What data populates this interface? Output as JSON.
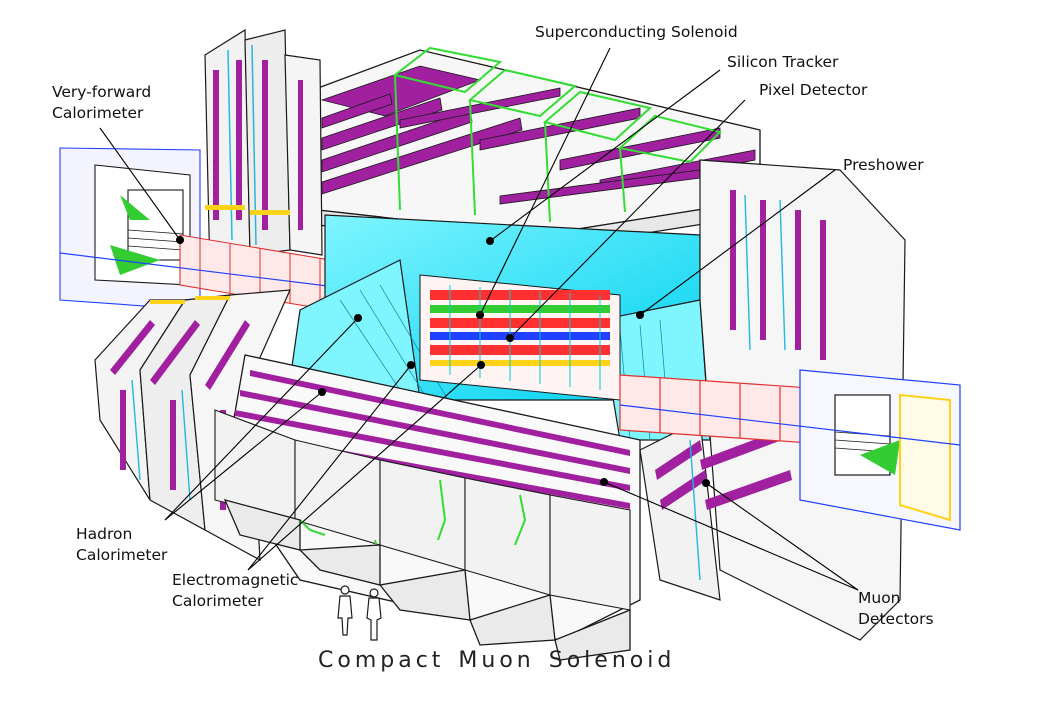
{
  "title": {
    "word1": "Compact",
    "word2": "Muon",
    "word3": "Solenoid"
  },
  "labels": {
    "superconducting_solenoid": "Superconducting Solenoid",
    "silicon_tracker": "Silicon Tracker",
    "pixel_detector": "Pixel Detector",
    "preshower": "Preshower",
    "very_forward_calorimeter": [
      "Very-forward",
      "Calorimeter"
    ],
    "hadron_calorimeter": [
      "Hadron",
      "Calorimeter"
    ],
    "electromagnetic_calorimeter": [
      "Electromagnetic",
      "Calorimeter"
    ],
    "muon_detectors": [
      "Muon",
      "Detectors"
    ]
  },
  "colors": {
    "outline": "#1a1a1a",
    "magnet_return_yoke": "#a020a0",
    "coil_support": "#33cc33",
    "ecal": "#00e5ff",
    "hcal": "#e03030",
    "tracker": "#ff3030",
    "cryostat": "#e0e0e0",
    "endcap_yellow": "#ffd21a",
    "beam_blue": "#2040ff"
  }
}
